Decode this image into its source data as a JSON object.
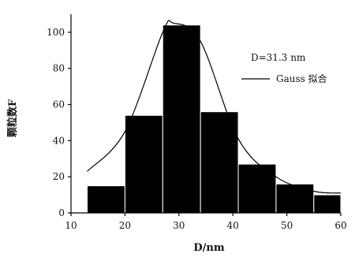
{
  "chart_data": {
    "type": "bar",
    "xlabel": "D/nm",
    "ylabel": "颗粒数F",
    "bin_edges": [
      13,
      20,
      27,
      34,
      41,
      48,
      55,
      60
    ],
    "values": [
      15,
      54,
      104,
      56,
      27,
      16,
      10
    ],
    "x_ticks": [
      "10",
      "20",
      "30",
      "40",
      "50",
      "60"
    ],
    "y_ticks": [
      "0",
      "20",
      "40",
      "60",
      "80",
      "100"
    ],
    "xlim": [
      10,
      60
    ],
    "ylim": [
      0,
      110
    ],
    "fit_curve": {
      "x": [
        13,
        20,
        27,
        29,
        34,
        41,
        48,
        55,
        60
      ],
      "y": [
        23,
        45,
        100,
        105,
        95,
        41,
        20,
        12,
        11
      ]
    },
    "legend": {
      "stat_text": "D=31.3 nm",
      "fit_label": "Gauss 拟合"
    },
    "bar_color": "#000000",
    "line_color": "#000000",
    "grid": false
  }
}
